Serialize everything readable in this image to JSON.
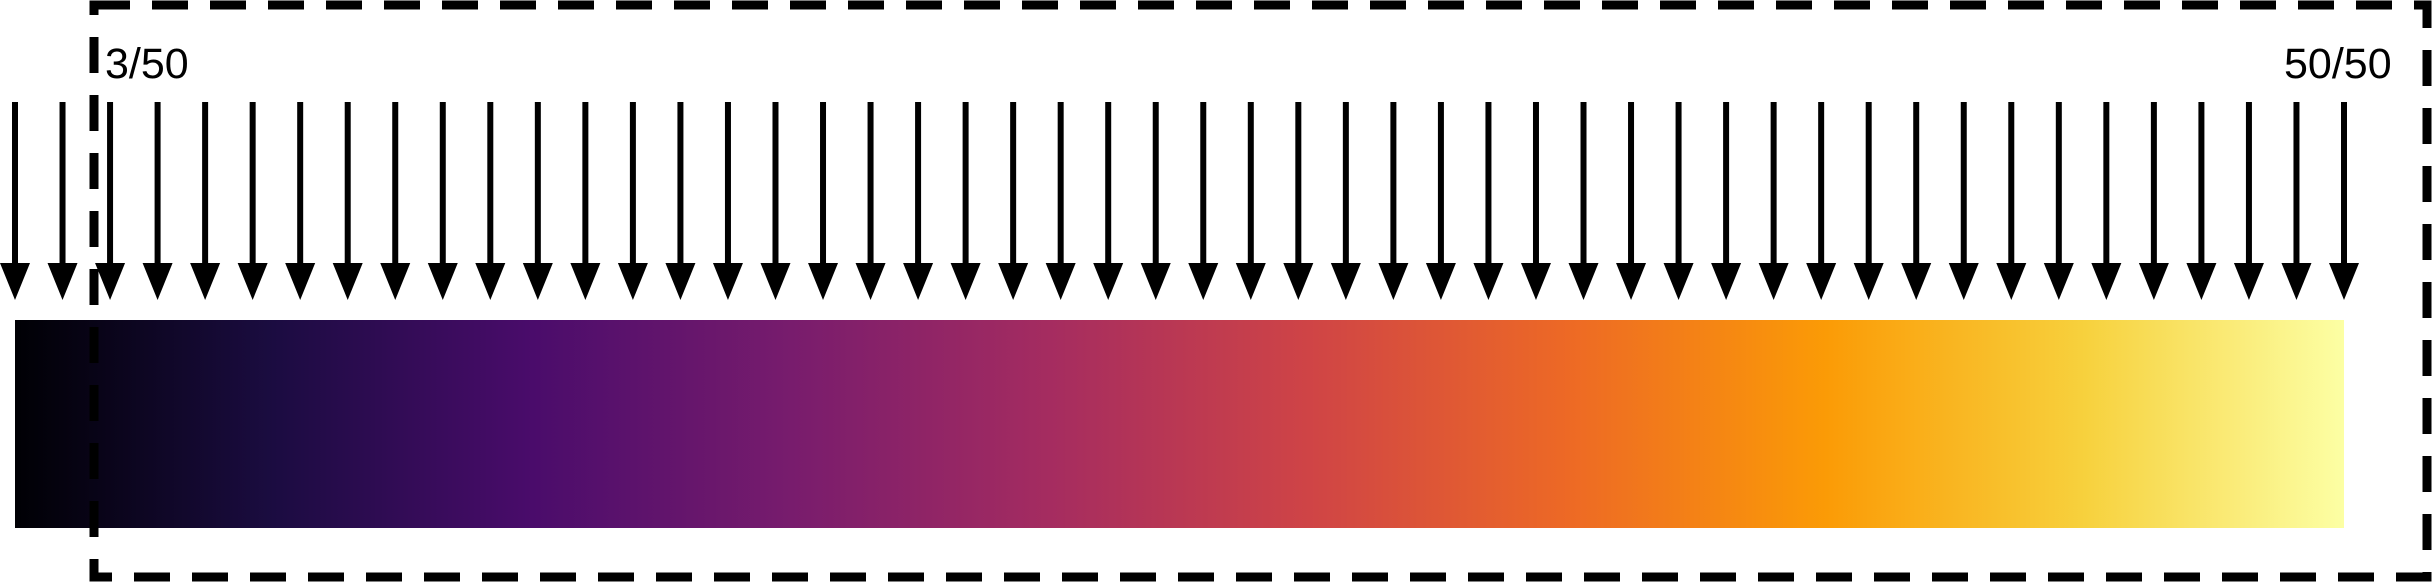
{
  "labels": {
    "start": "3/50",
    "end": "50/50"
  },
  "sequence": {
    "total": 50,
    "selection_start": 3,
    "selection_end": 50
  },
  "colormap": {
    "name": "inferno",
    "stops": [
      "#000004",
      "#1b0c41",
      "#4a0c6b",
      "#781c6d",
      "#a52c60",
      "#cf4446",
      "#ed6925",
      "#fb9b06",
      "#f7d13d",
      "#fcffa4"
    ]
  },
  "colors": {
    "ink": "#000000",
    "background": "#ffffff"
  }
}
